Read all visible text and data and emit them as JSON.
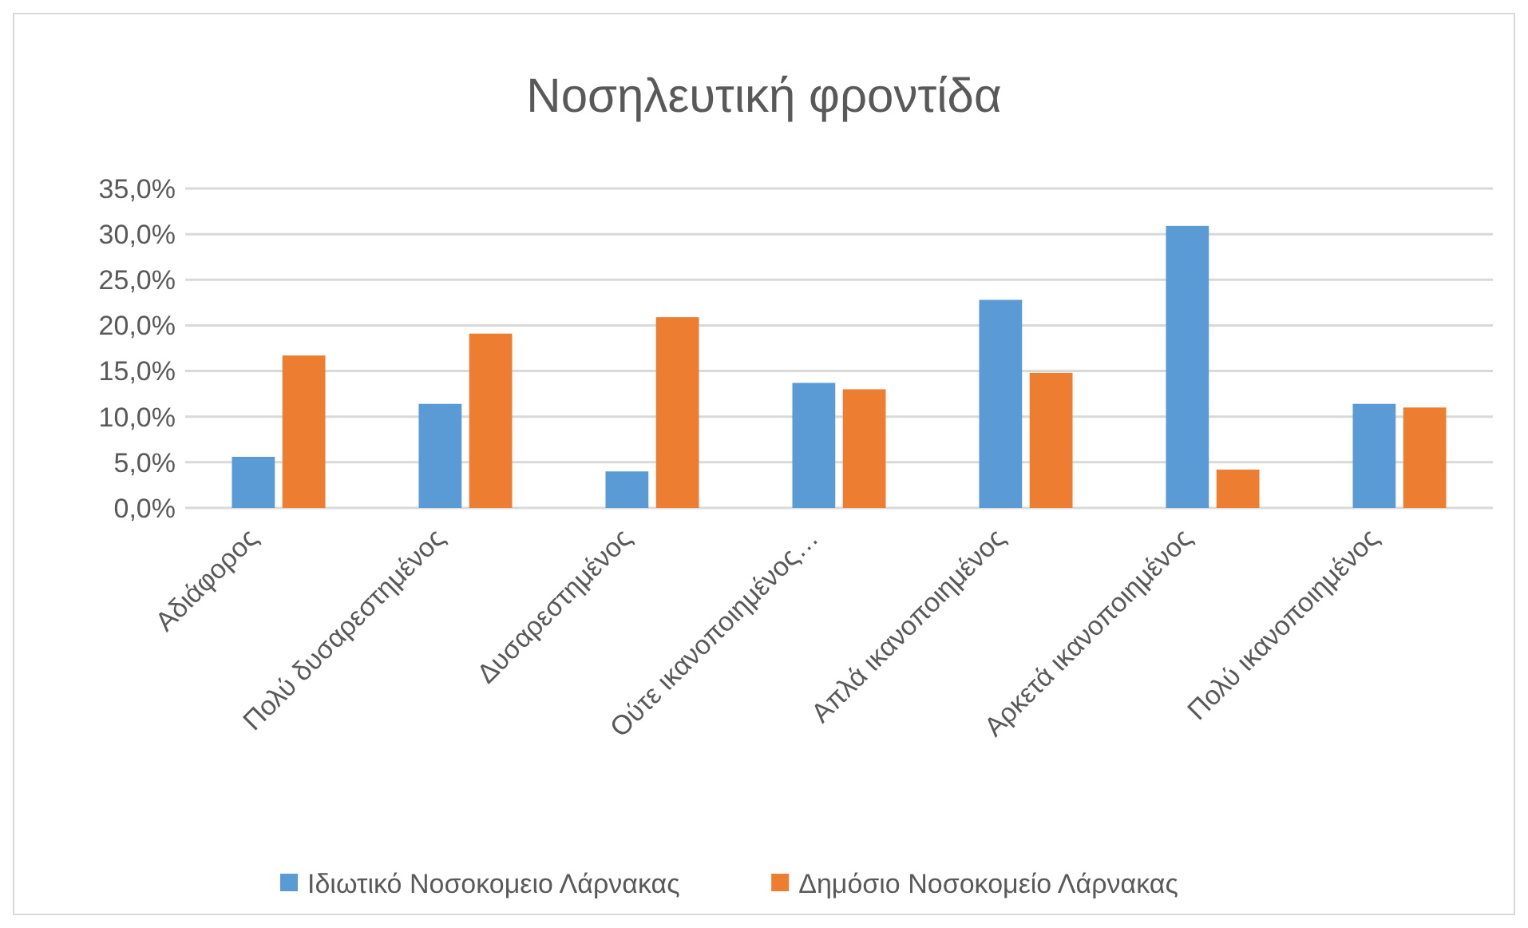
{
  "chart_data": {
    "type": "bar",
    "title": "Νοσηλευτική φροντίδα",
    "categories": [
      "Αδιάφορος",
      "Πολύ δυσαρεστημένος",
      "Δυσαρεστημένος",
      "Ούτε ικανοποιημένος…",
      "Απλά ικανοποιημένος",
      "Αρκετά ικανοποιημένος",
      "Πολύ ικανοποιημένος"
    ],
    "series": [
      {
        "name": "Ιδιωτικό Νοσοκομειο Λάρνακας",
        "color": "#5b9bd5",
        "values": [
          5.6,
          11.4,
          4.0,
          13.7,
          22.8,
          30.9,
          11.4
        ]
      },
      {
        "name": "Δημόσιο Νοσοκομείο Λάρνακας",
        "color": "#ed7d31",
        "values": [
          16.7,
          19.1,
          20.9,
          13.0,
          14.8,
          4.2,
          11.0
        ]
      }
    ],
    "ylim": [
      0,
      35
    ],
    "yticks": [
      {
        "value": 0,
        "label": "0,0%"
      },
      {
        "value": 5,
        "label": "5,0%"
      },
      {
        "value": 10,
        "label": "10,0%"
      },
      {
        "value": 15,
        "label": "15,0%"
      },
      {
        "value": 20,
        "label": "20,0%"
      },
      {
        "value": 25,
        "label": "25,0%"
      },
      {
        "value": 30,
        "label": "30,0%"
      },
      {
        "value": 35,
        "label": "35,0%"
      }
    ],
    "grid": "y",
    "legend": "bottom"
  }
}
